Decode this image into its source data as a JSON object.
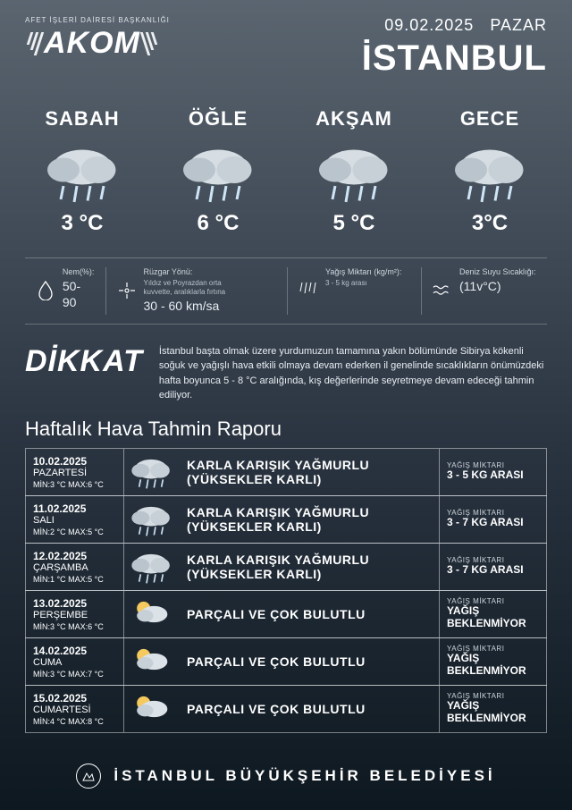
{
  "header": {
    "agency": "AFET İŞLERİ DAİRESİ BAŞKANLIĞI",
    "brand": "AKOM",
    "date": "09.02.2025",
    "weekday": "PAZAR",
    "city": "İSTANBUL"
  },
  "day_parts": [
    {
      "label": "SABAH",
      "temp": "3 °C",
      "icon": "snow-rain"
    },
    {
      "label": "ÖĞLE",
      "temp": "6 °C",
      "icon": "snow-rain"
    },
    {
      "label": "AKŞAM",
      "temp": "5 °C",
      "icon": "snow-rain"
    },
    {
      "label": "GECE",
      "temp": "3°C",
      "icon": "snow-rain"
    }
  ],
  "stats": {
    "humidity_label": "Nem(%):",
    "humidity_value": "50-90",
    "wind_label": "Rüzgar Yönü:",
    "wind_desc": "Yıldız ve Poyrazdan orta kuvvette, aralıklarla fırtına",
    "wind_value": "30 - 60 km/sa",
    "precip_label": "Yağış Miktarı (kg/m²):",
    "precip_value": "3 - 5 kg arası",
    "sea_label": "Deniz Suyu Sıcaklığı:",
    "sea_value": "(11v°C)"
  },
  "alert": {
    "title": "DİKKAT",
    "text": "İstanbul başta olmak üzere yurdumuzun tamamına yakın bölümünde Sibirya kökenli soğuk ve yağışlı hava etkili olmaya devam ederken il genelinde sıcaklıkların önümüzdeki hafta boyunca 5 - 8 °C aralığında, kış değerlerinde seyretmeye devam edeceği tahmin ediliyor."
  },
  "weekly_title": "Haftalık Hava Tahmin Raporu",
  "precip_col_label": "YAĞIŞ MİKTARI",
  "days": [
    {
      "date": "10.02.2025",
      "day": "PAZARTESİ",
      "min": "3",
      "max": "6",
      "cond": "KARLA KARIŞIK YAĞMURLU (YÜKSEKLER KARLI)",
      "precip": "3 - 5 KG ARASI",
      "icon": "snow-rain"
    },
    {
      "date": "11.02.2025",
      "day": "SALI",
      "min": "2",
      "max": "5",
      "cond": "KARLA KARIŞIK YAĞMURLU (YÜKSEKLER KARLI)",
      "precip": "3 - 7 KG ARASI",
      "icon": "snow-rain"
    },
    {
      "date": "12.02.2025",
      "day": "ÇARŞAMBA",
      "min": "1",
      "max": "5",
      "cond": "KARLA KARIŞIK YAĞMURLU (YÜKSEKLER KARLI)",
      "precip": "3 - 7 KG ARASI",
      "icon": "snow-rain"
    },
    {
      "date": "13.02.2025",
      "day": "PERŞEMBE",
      "min": "3",
      "max": "6",
      "cond": "PARÇALI VE ÇOK BULUTLU",
      "precip": "YAĞIŞ BEKLENMİYOR",
      "icon": "sun-cloud"
    },
    {
      "date": "14.02.2025",
      "day": "CUMA",
      "min": "3",
      "max": "7",
      "cond": "PARÇALI VE ÇOK BULUTLU",
      "precip": "YAĞIŞ BEKLENMİYOR",
      "icon": "sun-cloud"
    },
    {
      "date": "15.02.2025",
      "day": "CUMARTESİ",
      "min": "4",
      "max": "8",
      "cond": "PARÇALI VE ÇOK BULUTLU",
      "precip": "YAĞIŞ BEKLENMİYOR",
      "icon": "sun-cloud"
    }
  ],
  "footer": "İSTANBUL BÜYÜKŞEHİR BELEDİYESİ",
  "colors": {
    "bg_top": "#5a6570",
    "bg_mid": "#2a3441",
    "bg_bot": "#0d1820",
    "text": "#ffffff",
    "muted": "#cfd7de",
    "border": "rgba(255,255,255,.45)"
  }
}
